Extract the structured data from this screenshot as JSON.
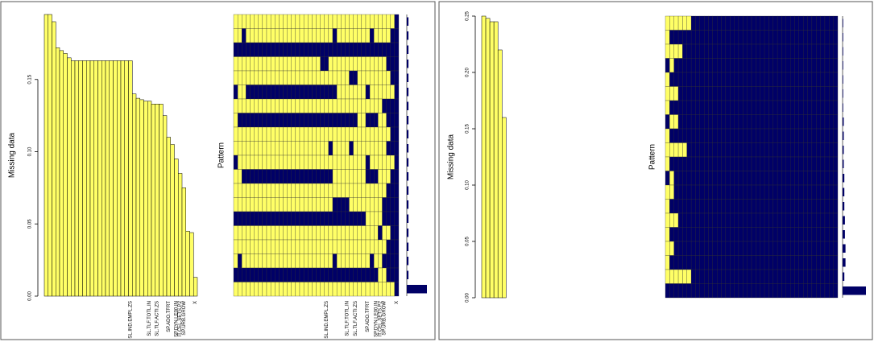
{
  "chart_data": [
    {
      "type": "bar",
      "y_label": "Missing data",
      "pattern_label": "Pattern",
      "categories": [
        null,
        null,
        null,
        null,
        null,
        null,
        null,
        null,
        null,
        null,
        null,
        null,
        null,
        null,
        null,
        null,
        null,
        null,
        null,
        null,
        null,
        null,
        "SL.IND.EMPL.ZS",
        null,
        null,
        null,
        null,
        "SL.TLF.TOTL.IN",
        null,
        "SL.TLF.ACTI.ZS",
        null,
        null,
        "SP.ADO.TFRT",
        null,
        "SP.DYN.LE00.IN",
        "IT.CEL.SETS.P2",
        "SP.URB.GROW",
        null,
        null,
        "X"
      ],
      "values": [
        0.195,
        0.195,
        0.19,
        0.172,
        0.17,
        0.168,
        0.165,
        0.163,
        0.163,
        0.163,
        0.163,
        0.163,
        0.163,
        0.163,
        0.163,
        0.163,
        0.163,
        0.163,
        0.163,
        0.163,
        0.163,
        0.163,
        0.163,
        0.14,
        0.137,
        0.136,
        0.135,
        0.135,
        0.133,
        0.133,
        0.133,
        0.125,
        0.11,
        0.105,
        0.095,
        0.085,
        0.075,
        0.045,
        0.044,
        0.013
      ],
      "color": "#ffff66",
      "pattern_missing_color": "#ffff66",
      "pattern_present_color": "#000066",
      "ylim": [
        0,
        0.195
      ],
      "yticks": [
        {
          "value": 0,
          "label": "0.00"
        },
        {
          "value": 0.05,
          "label": "0.05"
        },
        {
          "value": 0.1,
          "label": "0.10"
        },
        {
          "value": 0.15,
          "label": "0.15"
        }
      ],
      "pattern": [
        "1111111111111111111111111111111111111110",
        "1101111111111111111111110111111110111100",
        "0000000000000000000000000000000000000000",
        "1111111111111111111110011111111111111000",
        "1111111111111111111111111111001111111100",
        "0110000000000000000000000111111101111110",
        "1111111111111111111111111111111111110000",
        "1000000000000000000000000000001100011000",
        "1111111111111111111111111111111111111100",
        "1111111111111111111111101111011111111000",
        "0111111111111111111111111111111101111110",
        "1100000000000000000000001111111100011100",
        "1111111111111111111111111111111111111000",
        "1111111111111111111111110000111111110000",
        "0000000000000000000000000000000011110000",
        "1111111111111111111111111111111111101100",
        "1111111111111111111111111111111111111000",
        "1011111111111111111111110111111110110000",
        "0000000000000000000000000000000000011000",
        "1111111111111111111111111111111111111110"
      ],
      "pattern_freq": [
        1,
        1,
        1,
        1,
        1,
        1,
        1,
        1,
        1,
        1,
        1,
        1,
        1,
        1,
        1,
        1,
        1,
        1,
        1,
        12
      ]
    },
    {
      "type": "bar",
      "y_label": "Missing data",
      "pattern_label": "Pattern",
      "categories": [
        null,
        null,
        null,
        null,
        null,
        null,
        null,
        null,
        null,
        null,
        null,
        null,
        null,
        null,
        null,
        null,
        null,
        null,
        null,
        null,
        null,
        null,
        null,
        null,
        null,
        null,
        null,
        null,
        null,
        null,
        null,
        null,
        null,
        null,
        null,
        null,
        null,
        null,
        null,
        null
      ],
      "values": [
        0.25,
        0.248,
        0.245,
        0.245,
        0.22,
        0.16,
        0,
        0,
        0,
        0,
        0,
        0,
        0,
        0,
        0,
        0,
        0,
        0,
        0,
        0,
        0,
        0,
        0,
        0,
        0,
        0,
        0,
        0,
        0,
        0,
        0,
        0,
        0,
        0,
        0,
        0,
        0,
        0,
        0,
        0
      ],
      "color": "#ffff66",
      "pattern_missing_color": "#ffff66",
      "pattern_present_color": "#000066",
      "ylim": [
        0,
        0.25
      ],
      "yticks": [
        {
          "value": 0,
          "label": "0.00"
        },
        {
          "value": 0.05,
          "label": "0.05"
        },
        {
          "value": 0.1,
          "label": "0.10"
        },
        {
          "value": 0.15,
          "label": "0.15"
        },
        {
          "value": 0.2,
          "label": "0.20"
        },
        {
          "value": 0.25,
          "label": "0.25"
        }
      ],
      "pattern": [
        "1111110000000000000000000000000000000000",
        "1000000000000000000000000000000000000000",
        "1111000000000000000000000000000000000000",
        "0100000000000000000000000000000000000000",
        "1000000000000000000000000000000000000000",
        "1110000000000000000000000000000000000000",
        "1000000000000000000000000000000000000000",
        "0110000000000000000000000000000000000000",
        "1000000000000000000000000000000000000000",
        "1111100000000000000000000000000000000000",
        "1000000000000000000000000000000000000000",
        "0100000000000000000000000000000000000000",
        "1100000000000000000000000000000000000000",
        "1000000000000000000000000000000000000000",
        "1110000000000000000000000000000000000000",
        "1000000000000000000000000000000000000000",
        "1100000000000000000000000000000000000000",
        "1000000000000000000000000000000000000000",
        "1111110000000000000000000000000000000000",
        "0000000000000000000000000000000000000000"
      ],
      "pattern_freq": [
        1,
        1,
        1,
        1,
        1,
        1,
        1,
        2,
        2,
        2,
        2,
        3,
        3,
        3,
        4,
        4,
        5,
        5,
        3,
        40
      ]
    }
  ]
}
